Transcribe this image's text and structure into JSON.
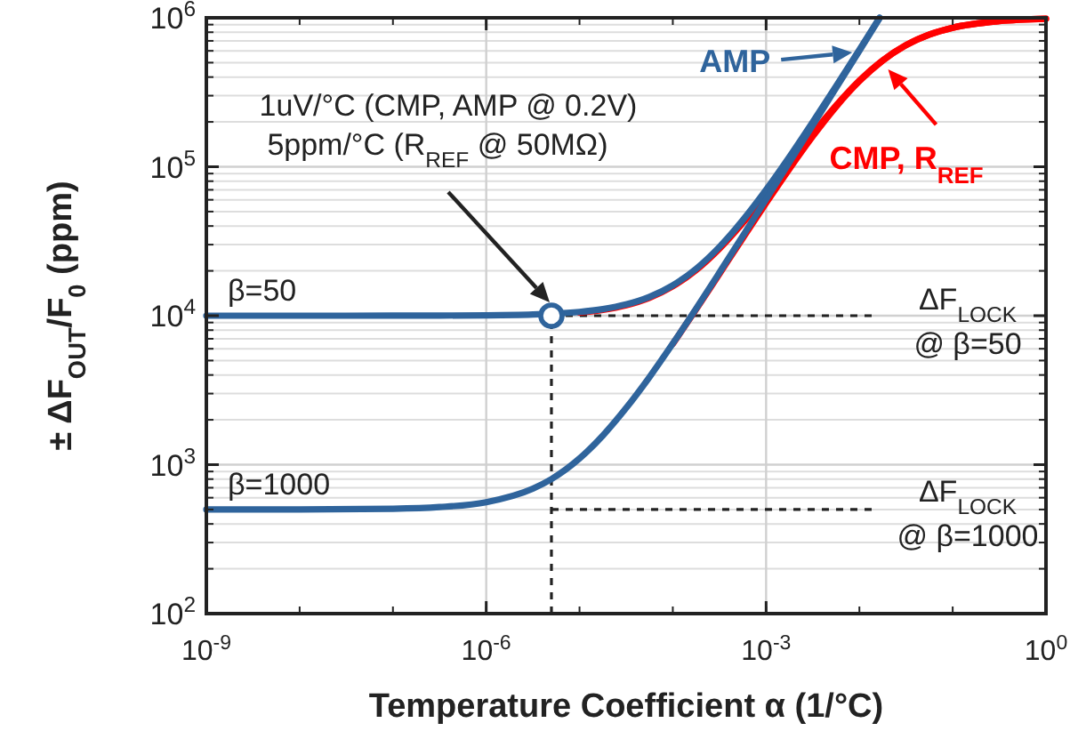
{
  "chart_data": {
    "type": "line",
    "xlabel": "Temperature Coefficient α (1/°C)",
    "ylabel": "± ΔF$_{OUT}$/F$_{0}$ (ppm)",
    "log": "xy",
    "grid": true,
    "line_style": "solid",
    "legend": "top right",
    "xlim": [
      1e-09,
      1
    ],
    "ylim": [
      100,
      1000000
    ],
    "xticks": [
      {
        "value": 1e-09,
        "label": "10$^{-9}$"
      },
      {
        "value": 1e-06,
        "label": "10$^{-6}$"
      },
      {
        "value": 0.001,
        "label": "10$^{-3}$"
      },
      {
        "value": 1,
        "label": "10$^{0}$"
      }
    ],
    "yticks": [
      {
        "value": 100,
        "label": "10$^{2}$"
      },
      {
        "value": 1000,
        "label": "10$^{3}$"
      },
      {
        "value": 10000,
        "label": "10$^{4}$"
      },
      {
        "value": 100000,
        "label": "10$^{5}$"
      },
      {
        "value": 1000000,
        "label": "10$^{6}$"
      }
    ],
    "series": [
      {
        "color": "#ff0000",
        "x": [
          1e-05,
          1.78e-05,
          3.16e-05,
          5.62e-05,
          0.0001,
          0.000178,
          0.000316,
          0.000562,
          0.001,
          0.00178,
          0.00316,
          0.00562,
          0.01,
          0.0178,
          0.0316,
          0.0562,
          0.1,
          0.316,
          1
        ],
        "values": [
          10490,
          10950,
          11760,
          13200,
          15750,
          20250,
          28160,
          41900,
          65400,
          104500,
          166500,
          257800,
          378900,
          518500,
          656100,
          771900,
          857300,
          949900,
          983600
        ]
      },
      {
        "name": "CMP, R$_{REF}$",
        "color": "#ff0000",
        "x": [
          0.0001,
          0.000178,
          0.000316,
          0.000562,
          0.001,
          0.00178,
          0.00316,
          0.00562,
          0.01,
          0.0178,
          0.0316,
          0.0562,
          0.1,
          0.316,
          1
        ],
        "values": [
          6460,
          11040,
          19100,
          33110,
          57050,
          96820,
          159800,
          252600,
          375200,
          516300,
          654900,
          771400,
          857200,
          949900,
          983600
        ]
      },
      {
        "color": "#2f649c",
        "x": [
          1e-09,
          1e-08,
          1e-07,
          3.16e-07,
          1e-06,
          3.16e-06,
          5e-06,
          1e-05,
          1.78e-05,
          3.16e-05,
          5.62e-05,
          0.0001,
          0.000178,
          0.000316,
          0.000562,
          0.001,
          0.00178,
          0.00316,
          0.00562,
          0.01,
          0.0165
        ],
        "values": [
          10000,
          10000,
          10010,
          10020,
          10060,
          10190,
          10300,
          10600,
          11070,
          11900,
          13370,
          16000,
          20670,
          28970,
          43740,
          70000,
          116700,
          199700,
          347400,
          610000,
          1000000
        ]
      },
      {
        "name": "AMP",
        "color": "#2f649c",
        "x": [
          1e-09,
          1e-08,
          1e-07,
          3.16e-07,
          1e-06,
          3.16e-06,
          5e-06,
          1e-05,
          1.78e-05,
          3.16e-05,
          5.62e-05,
          0.0001,
          0.000178,
          0.000316,
          0.000562,
          0.001,
          0.00178,
          0.00316,
          0.00562,
          0.01,
          0.0165
        ],
        "values": [
          500,
          501,
          506,
          519,
          560,
          690,
          800,
          1100,
          1570,
          2400,
          3870,
          6500,
          11170,
          19470,
          34240,
          60500,
          107200,
          190200,
          337900,
          600500,
          1000000
        ]
      },
      {
        "type": "scatter",
        "marker": "circle",
        "color": "#2f649c",
        "x": [
          5e-06
        ],
        "values": [
          10000
        ]
      }
    ],
    "ref_lines": [
      {
        "axis": "x",
        "value": 5e-06,
        "color": "#222222",
        "line_style": "dashed"
      },
      {
        "axis": "y",
        "value": 10000,
        "color": "#222222",
        "line_style": "dashed"
      },
      {
        "axis": "y",
        "value": 500,
        "color": "#222222",
        "line_style": "dashed"
      }
    ],
    "annotations": [
      "β=50",
      "β=1000",
      "1uV/°C (CMP, AMP @ 0.2V)\n5ppm/°C (R$_{REF}$ @ 50MΩ)",
      "ΔF$_{LOCK}$\n@ β=50",
      "ΔF$_{LOCK}$\n@ β=1000"
    ]
  }
}
